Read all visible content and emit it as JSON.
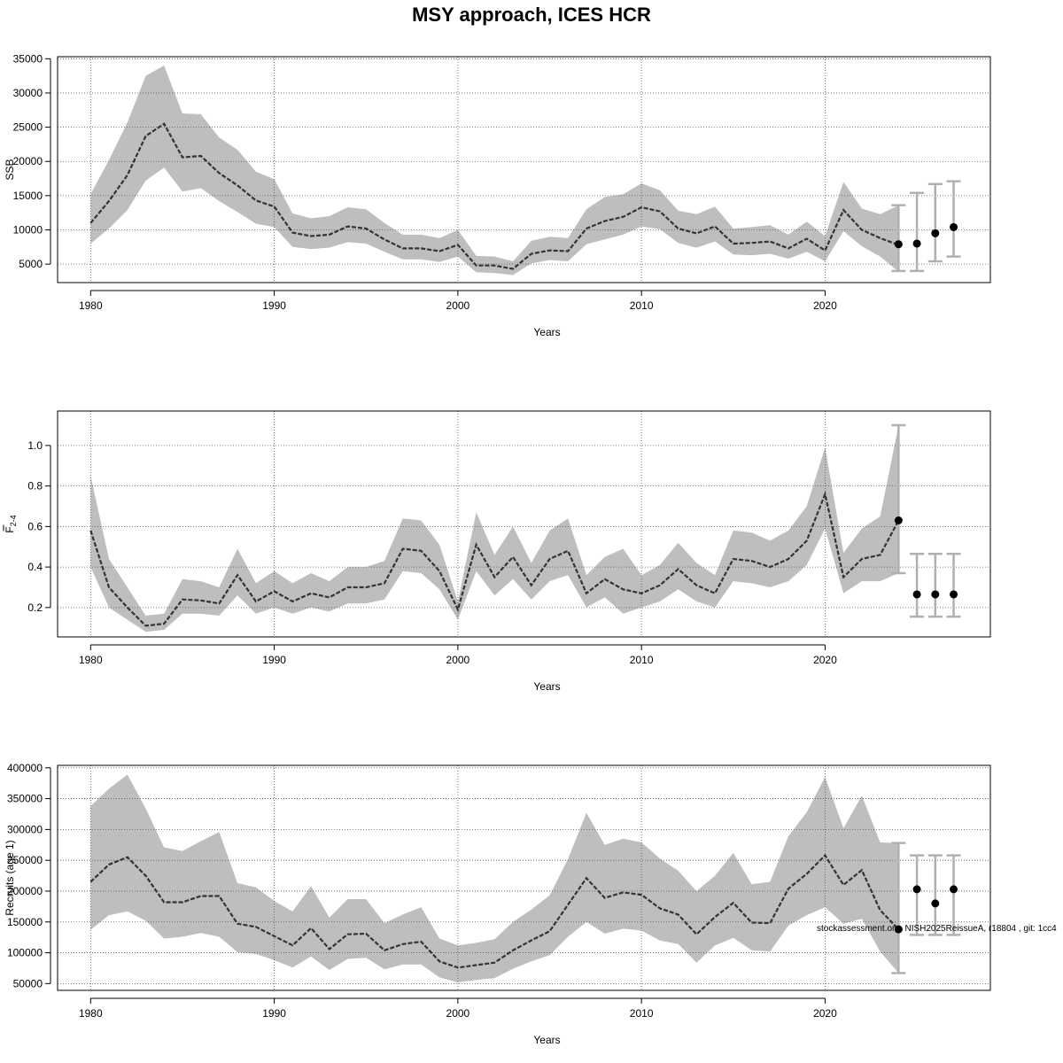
{
  "title": "MSY approach, ICES HCR",
  "watermark": "stockassessment.org, NISH2025ReissueA, r18804 , git: 1cc4",
  "colors": {
    "band": "#bebebe",
    "line": "#333333",
    "grid": "#555555",
    "whisker": "#b0b0b0",
    "point": "#000000"
  },
  "chart_data": [
    {
      "type": "line",
      "ylabel": "SSB",
      "xlabel": "Years",
      "xticks": [
        1980,
        1990,
        2000,
        2010,
        2020
      ],
      "xlim": [
        1978.2,
        2029
      ],
      "yticks": [
        5000,
        10000,
        15000,
        20000,
        25000,
        30000,
        35000
      ],
      "ylim": [
        2300,
        35300
      ],
      "x": [
        1980,
        1981,
        1982,
        1983,
        1984,
        1985,
        1986,
        1987,
        1988,
        1989,
        1990,
        1991,
        1992,
        1993,
        1994,
        1995,
        1996,
        1997,
        1998,
        1999,
        2000,
        2001,
        2002,
        2003,
        2004,
        2005,
        2006,
        2007,
        2008,
        2009,
        2010,
        2011,
        2012,
        2013,
        2014,
        2015,
        2016,
        2017,
        2018,
        2019,
        2020,
        2021,
        2022,
        2023,
        2024
      ],
      "estimate": [
        11000,
        14200,
        18000,
        23700,
        25500,
        20600,
        20800,
        18300,
        16500,
        14300,
        13400,
        9600,
        9100,
        9300,
        10500,
        10200,
        8600,
        7300,
        7300,
        6900,
        7800,
        4800,
        4800,
        4300,
        6500,
        7000,
        6900,
        10200,
        11300,
        11900,
        13300,
        12700,
        10200,
        9500,
        10500,
        8000,
        8100,
        8300,
        7300,
        8700,
        7000,
        12900,
        10000,
        8800,
        7800
      ],
      "upper": [
        15200,
        20200,
        25700,
        32500,
        34000,
        27000,
        26900,
        23500,
        21700,
        18500,
        17400,
        12400,
        11700,
        12000,
        13300,
        13000,
        11000,
        9300,
        9300,
        8800,
        10000,
        6200,
        6100,
        5400,
        8400,
        9000,
        8800,
        13000,
        14800,
        15200,
        16800,
        15800,
        12800,
        12300,
        13400,
        10200,
        10400,
        10700,
        9300,
        11200,
        9100,
        17000,
        13100,
        12300,
        13600
      ],
      "lower": [
        8000,
        10200,
        12900,
        17200,
        19100,
        15600,
        16100,
        14200,
        12600,
        10900,
        10400,
        7500,
        7200,
        7400,
        8200,
        8000,
        6800,
        5700,
        5700,
        5300,
        6100,
        3800,
        3700,
        3400,
        5100,
        5600,
        5400,
        7900,
        8600,
        9300,
        10500,
        10100,
        8100,
        7400,
        8300,
        6400,
        6300,
        6500,
        5800,
        6800,
        5400,
        9800,
        7600,
        6100,
        3900
      ],
      "forecast": [
        {
          "x": 2024,
          "value": 7900,
          "low": 4000,
          "high": 13600
        },
        {
          "x": 2025,
          "value": 8000,
          "low": 4000,
          "high": 15400
        },
        {
          "x": 2026,
          "value": 9500,
          "low": 5400,
          "high": 16700
        },
        {
          "x": 2027,
          "value": 10400,
          "low": 6100,
          "high": 17100
        }
      ]
    },
    {
      "type": "line",
      "ylabel_main": "F",
      "ylabel_sub": "2-4",
      "xlabel": "Years",
      "xticks": [
        1980,
        1990,
        2000,
        2010,
        2020
      ],
      "xlim": [
        1978.2,
        2029
      ],
      "yticks": [
        0.2,
        0.4,
        0.6,
        0.8,
        1.0
      ],
      "yticklabels": [
        "0.2",
        "0.4",
        "0.6",
        "0.8",
        "1.0"
      ],
      "ylim": [
        0.055,
        1.17
      ],
      "x": [
        1980,
        1981,
        1982,
        1983,
        1984,
        1985,
        1986,
        1987,
        1988,
        1989,
        1990,
        1991,
        1992,
        1993,
        1994,
        1995,
        1996,
        1997,
        1998,
        1999,
        2000,
        2001,
        2002,
        2003,
        2004,
        2005,
        2006,
        2007,
        2008,
        2009,
        2010,
        2011,
        2012,
        2013,
        2014,
        2015,
        2016,
        2017,
        2018,
        2019,
        2020,
        2021,
        2022,
        2023,
        2024
      ],
      "estimate": [
        0.58,
        0.3,
        0.2,
        0.11,
        0.12,
        0.24,
        0.235,
        0.22,
        0.36,
        0.23,
        0.28,
        0.23,
        0.27,
        0.25,
        0.3,
        0.3,
        0.32,
        0.49,
        0.48,
        0.38,
        0.19,
        0.51,
        0.35,
        0.45,
        0.31,
        0.44,
        0.48,
        0.27,
        0.34,
        0.29,
        0.27,
        0.31,
        0.39,
        0.31,
        0.27,
        0.44,
        0.43,
        0.4,
        0.44,
        0.53,
        0.76,
        0.35,
        0.44,
        0.46,
        0.63
      ],
      "upper": [
        0.85,
        0.44,
        0.3,
        0.16,
        0.17,
        0.34,
        0.33,
        0.3,
        0.49,
        0.32,
        0.38,
        0.32,
        0.37,
        0.33,
        0.4,
        0.4,
        0.43,
        0.64,
        0.63,
        0.51,
        0.23,
        0.67,
        0.46,
        0.6,
        0.42,
        0.58,
        0.64,
        0.36,
        0.45,
        0.49,
        0.36,
        0.41,
        0.52,
        0.42,
        0.36,
        0.58,
        0.57,
        0.53,
        0.58,
        0.7,
        0.99,
        0.47,
        0.59,
        0.65,
        1.1
      ],
      "lower": [
        0.4,
        0.2,
        0.14,
        0.08,
        0.09,
        0.17,
        0.17,
        0.16,
        0.26,
        0.17,
        0.2,
        0.17,
        0.2,
        0.18,
        0.22,
        0.22,
        0.24,
        0.38,
        0.37,
        0.29,
        0.14,
        0.38,
        0.26,
        0.34,
        0.24,
        0.33,
        0.36,
        0.2,
        0.25,
        0.17,
        0.2,
        0.23,
        0.29,
        0.23,
        0.2,
        0.33,
        0.32,
        0.3,
        0.33,
        0.41,
        0.59,
        0.27,
        0.33,
        0.33,
        0.37
      ],
      "forecast": [
        {
          "x": 2024,
          "value": 0.63,
          "low": 0.37,
          "high": 1.1
        },
        {
          "x": 2025,
          "value": 0.265,
          "low": 0.155,
          "high": 0.465
        },
        {
          "x": 2026,
          "value": 0.265,
          "low": 0.155,
          "high": 0.465
        },
        {
          "x": 2027,
          "value": 0.265,
          "low": 0.155,
          "high": 0.465
        }
      ]
    },
    {
      "type": "line",
      "ylabel": "Recruits (age 1)",
      "xlabel": "Years",
      "xticks": [
        1980,
        1990,
        2000,
        2010,
        2020
      ],
      "xlim": [
        1978.2,
        2029
      ],
      "yticks": [
        50000,
        100000,
        150000,
        200000,
        250000,
        300000,
        350000,
        400000
      ],
      "ylim": [
        39000,
        404000
      ],
      "x": [
        1980,
        1981,
        1982,
        1983,
        1984,
        1985,
        1986,
        1987,
        1988,
        1989,
        1990,
        1991,
        1992,
        1993,
        1994,
        1995,
        1996,
        1997,
        1998,
        1999,
        2000,
        2001,
        2002,
        2003,
        2004,
        2005,
        2006,
        2007,
        2008,
        2009,
        2010,
        2011,
        2012,
        2013,
        2014,
        2015,
        2016,
        2017,
        2018,
        2019,
        2020,
        2021,
        2022,
        2023,
        2024
      ],
      "estimate": [
        215000,
        243000,
        255000,
        225000,
        182000,
        182000,
        192000,
        192000,
        147000,
        142000,
        127000,
        112000,
        140000,
        106000,
        130000,
        131000,
        104000,
        114000,
        118000,
        86000,
        76000,
        80000,
        84000,
        104000,
        120000,
        135000,
        178000,
        221000,
        189000,
        198000,
        194000,
        172000,
        162000,
        130000,
        158000,
        181000,
        149000,
        148000,
        204000,
        228000,
        258000,
        210000,
        234000,
        169000,
        138000
      ],
      "upper": [
        338000,
        366000,
        389000,
        334000,
        271000,
        265000,
        281000,
        296000,
        213000,
        206000,
        184000,
        167000,
        208000,
        157000,
        187000,
        187000,
        148000,
        162000,
        174000,
        123000,
        112000,
        116000,
        122000,
        150000,
        170000,
        193000,
        252000,
        327000,
        275000,
        285000,
        279000,
        253000,
        233000,
        200000,
        225000,
        262000,
        211000,
        215000,
        289000,
        328000,
        385000,
        302000,
        355000,
        279000,
        278000
      ],
      "lower": [
        137000,
        161000,
        167000,
        152000,
        123000,
        126000,
        132000,
        126000,
        101000,
        98000,
        88000,
        76000,
        94000,
        72000,
        90000,
        92000,
        73000,
        81000,
        81000,
        60000,
        52000,
        56000,
        59000,
        74000,
        86000,
        96000,
        126000,
        150000,
        131000,
        139000,
        136000,
        120000,
        114000,
        84000,
        112000,
        124000,
        104000,
        102000,
        144000,
        161000,
        174000,
        147000,
        155000,
        102000,
        67000
      ],
      "forecast": [
        {
          "x": 2024,
          "value": 138000,
          "low": 67000,
          "high": 278000
        },
        {
          "x": 2025,
          "value": 203000,
          "low": 129000,
          "high": 258000
        },
        {
          "x": 2026,
          "value": 180000,
          "low": 129000,
          "high": 258000
        },
        {
          "x": 2027,
          "value": 203000,
          "low": 129000,
          "high": 258000
        }
      ]
    }
  ]
}
